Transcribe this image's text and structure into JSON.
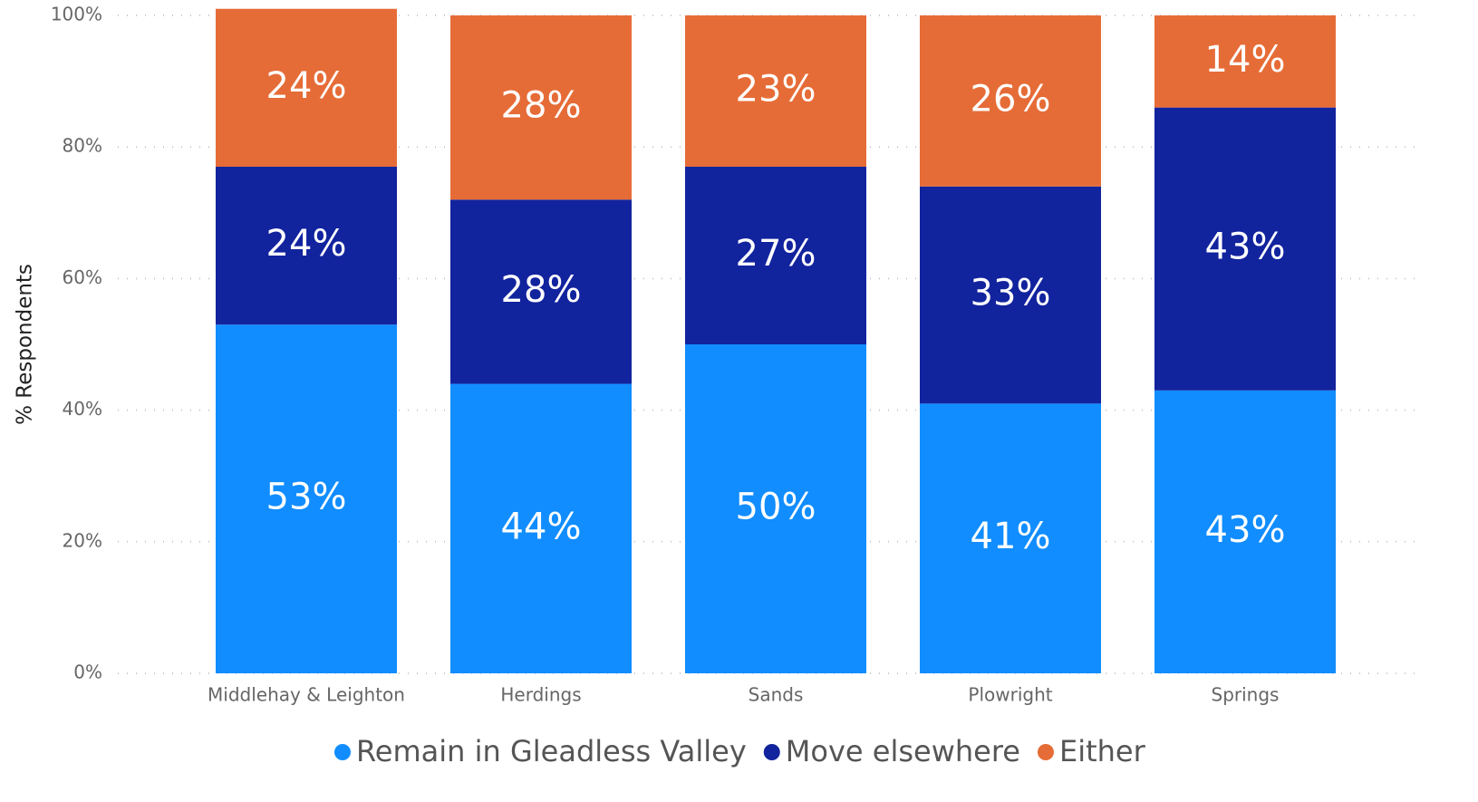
{
  "chart_data": {
    "type": "stacked_bar",
    "y_label": "% Respondents",
    "categories": [
      "Middlehay & Leighton",
      "Herdings",
      "Sands",
      "Plowright",
      "Springs"
    ],
    "series": [
      {
        "name": "Remain in Gleadless Valley",
        "color": "#118DFF",
        "values": [
          53,
          44,
          50,
          41,
          43
        ],
        "value_labels": [
          "53%",
          "44%",
          "50%",
          "41%",
          "43%"
        ]
      },
      {
        "name": "Move elsewhere",
        "color": "#12239E",
        "values": [
          24,
          28,
          27,
          33,
          43
        ],
        "value_labels": [
          "24%",
          "28%",
          "27%",
          "33%",
          "43%"
        ]
      },
      {
        "name": "Either",
        "color": "#E66C37",
        "values": [
          24,
          28,
          23,
          26,
          14
        ],
        "value_labels": [
          "24%",
          "28%",
          "23%",
          "26%",
          "14%"
        ]
      }
    ],
    "ylim": [
      0,
      100
    ],
    "yticks": [
      {
        "value": 0,
        "label": "0%"
      },
      {
        "value": 20,
        "label": "20%"
      },
      {
        "value": 40,
        "label": "40%"
      },
      {
        "value": 60,
        "label": "60%"
      },
      {
        "value": 80,
        "label": "80%"
      },
      {
        "value": 100,
        "label": "100%"
      }
    ],
    "grid": true,
    "legend": "bottom"
  }
}
